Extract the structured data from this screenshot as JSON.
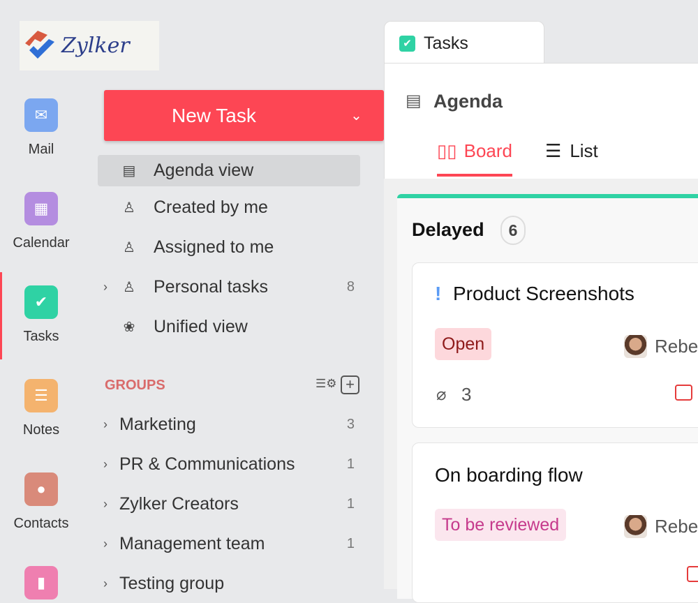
{
  "logo": {
    "text": "Zylker"
  },
  "rail": [
    {
      "label": "Mail",
      "icon": "mail-icon",
      "color": "#7ba7f0"
    },
    {
      "label": "Calendar",
      "icon": "calendar-icon",
      "color": "#b48de0"
    },
    {
      "label": "Tasks",
      "icon": "check-icon",
      "color": "#2fd2a4",
      "active": true
    },
    {
      "label": "Notes",
      "icon": "notes-icon",
      "color": "#f4b36e"
    },
    {
      "label": "Contacts",
      "icon": "contact-icon",
      "color": "#d98a7a"
    },
    {
      "label": "",
      "icon": "bookmark-icon",
      "color": "#ef7fb0"
    }
  ],
  "new_task": {
    "label": "New Task",
    "color": "#fd4654"
  },
  "views": [
    {
      "label": "Agenda view",
      "icon": "agenda-icon",
      "selected": true
    },
    {
      "label": "Created by me",
      "icon": "user-out-icon"
    },
    {
      "label": "Assigned to me",
      "icon": "user-in-icon"
    },
    {
      "label": "Personal tasks",
      "icon": "user-icon",
      "count": "8"
    },
    {
      "label": "Unified view",
      "icon": "unified-icon"
    }
  ],
  "groups": {
    "title": "GROUPS",
    "items": [
      {
        "label": "Marketing",
        "count": "3"
      },
      {
        "label": "PR & Communications",
        "count": "1"
      },
      {
        "label": "Zylker Creators",
        "count": "1"
      },
      {
        "label": "Management team",
        "count": "1"
      },
      {
        "label": "Testing group",
        "count": ""
      }
    ]
  },
  "tab": {
    "label": "Tasks"
  },
  "header": {
    "title": "Agenda",
    "views": [
      {
        "label": "Board",
        "active": true
      },
      {
        "label": "List"
      }
    ]
  },
  "column": {
    "title": "Delayed",
    "count": "6",
    "accent": "#2fd2a4"
  },
  "cards": [
    {
      "title": "Product Screenshots",
      "priority": "!",
      "status": "Open",
      "assignee": "Rebe",
      "attachments": "3"
    },
    {
      "title": "On boarding flow",
      "status": "To be reviewed",
      "assignee": "Rebe"
    }
  ]
}
